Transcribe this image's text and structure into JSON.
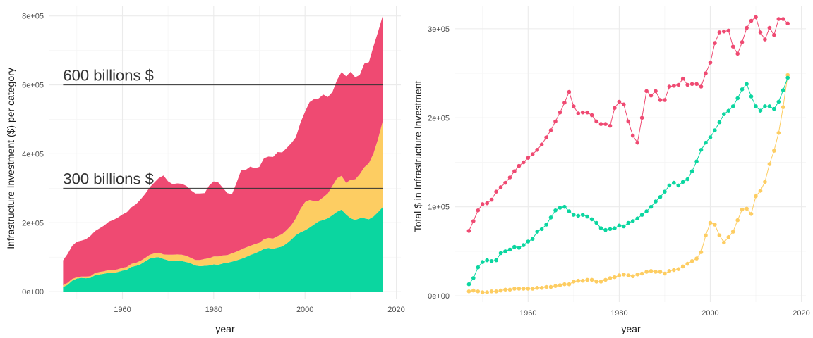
{
  "colors": {
    "red": "#ef4a72",
    "yellow": "#fdcd62",
    "green": "#0bd6a0",
    "grid_major": "#ebebeb",
    "grid_minor": "#f5f5f5",
    "hline": "#333333"
  },
  "chart_data": [
    {
      "type": "area",
      "stacked": true,
      "xlabel": "year",
      "ylabel": "Infrastructure Investment ($) per category",
      "xlim": [
        1944,
        2021
      ],
      "ylim": [
        -20000,
        830000
      ],
      "xticks": [
        1960,
        1980,
        2000,
        2020
      ],
      "xtick_labels": [
        "1960",
        "1980",
        "2000",
        "2020"
      ],
      "yticks": [
        0,
        200000,
        400000,
        600000,
        800000
      ],
      "ytick_labels": [
        "0e+00",
        "2e+05",
        "4e+05",
        "6e+05",
        "8e+05"
      ],
      "annotations": [
        {
          "y": 600000,
          "x_start": 1947,
          "x_end": 2017,
          "text": "600 billions $"
        },
        {
          "y": 300000,
          "x_start": 1947,
          "x_end": 2017,
          "text": "300 billions $"
        }
      ],
      "years": [
        1947,
        1948,
        1949,
        1950,
        1951,
        1952,
        1953,
        1954,
        1955,
        1956,
        1957,
        1958,
        1959,
        1960,
        1961,
        1962,
        1963,
        1964,
        1965,
        1966,
        1967,
        1968,
        1969,
        1970,
        1971,
        1972,
        1973,
        1974,
        1975,
        1976,
        1977,
        1978,
        1979,
        1980,
        1981,
        1982,
        1983,
        1984,
        1985,
        1986,
        1987,
        1988,
        1989,
        1990,
        1991,
        1992,
        1993,
        1994,
        1995,
        1996,
        1997,
        1998,
        1999,
        2000,
        2001,
        2002,
        2003,
        2004,
        2005,
        2006,
        2007,
        2008,
        2009,
        2010,
        2011,
        2012,
        2013,
        2014,
        2015,
        2016,
        2017
      ],
      "series": [
        {
          "name": "green",
          "color_key": "green",
          "values": [
            13000,
            20000,
            32000,
            38000,
            40000,
            39000,
            40000,
            48000,
            50000,
            52000,
            55000,
            54000,
            57000,
            61000,
            64000,
            72000,
            75000,
            80000,
            88000,
            96000,
            99000,
            100000,
            95000,
            91000,
            90000,
            91000,
            89000,
            86000,
            82000,
            76000,
            74000,
            75000,
            76000,
            79000,
            78000,
            82000,
            84000,
            87000,
            91000,
            95000,
            100000,
            106000,
            111000,
            117000,
            124000,
            127000,
            124000,
            128000,
            131000,
            140000,
            151000,
            164000,
            172000,
            178000,
            186000,
            195000,
            204000,
            208000,
            213000,
            222000,
            232000,
            238000,
            224000,
            213000,
            208000,
            213000,
            213000,
            210000,
            218000,
            231000,
            245000
          ]
        },
        {
          "name": "yellow",
          "color_key": "yellow",
          "values": [
            5000,
            6000,
            5000,
            4000,
            4000,
            5000,
            5000,
            6000,
            7000,
            7000,
            8000,
            8000,
            8000,
            8000,
            8000,
            9000,
            9000,
            10000,
            10000,
            11000,
            12000,
            13000,
            13000,
            16000,
            17000,
            17000,
            18000,
            18000,
            16000,
            16000,
            18000,
            20000,
            21000,
            23000,
            24000,
            23000,
            22000,
            24000,
            25000,
            27000,
            28000,
            27000,
            27000,
            25000,
            28000,
            29000,
            30000,
            33000,
            36000,
            39000,
            42000,
            49000,
            68000,
            82000,
            80000,
            68000,
            60000,
            66000,
            72000,
            85000,
            97000,
            98000,
            92000,
            112000,
            118000,
            128000,
            148000,
            163000,
            183000,
            212000,
            248000
          ]
        },
        {
          "name": "red",
          "color_key": "red",
          "values": [
            73000,
            84000,
            96000,
            103000,
            104000,
            108000,
            117000,
            122000,
            127000,
            133000,
            140000,
            146000,
            150000,
            155000,
            159000,
            164000,
            170000,
            178000,
            186000,
            196000,
            206000,
            217000,
            229000,
            213000,
            205000,
            206000,
            206000,
            203000,
            196000,
            193000,
            193000,
            191000,
            211000,
            218000,
            215000,
            196000,
            180000,
            172000,
            200000,
            230000,
            225000,
            230000,
            220000,
            220000,
            235000,
            236000,
            237000,
            244000,
            237000,
            238000,
            238000,
            235000,
            250000,
            262000,
            284000,
            296000,
            297000,
            298000,
            280000,
            272000,
            285000,
            301000,
            309000,
            313000,
            296000,
            288000,
            301000,
            293000,
            311000,
            311000,
            306000
          ]
        }
      ]
    },
    {
      "type": "line",
      "markers": true,
      "xlabel": "year",
      "ylabel": "Total $ in Infrastructure Investment",
      "xlim": [
        1944,
        2021
      ],
      "ylim": [
        -7000,
        326000
      ],
      "xticks": [
        1960,
        1980,
        2000,
        2020
      ],
      "xtick_labels": [
        "1960",
        "1980",
        "2000",
        "2020"
      ],
      "yticks": [
        0,
        100000,
        200000,
        300000
      ],
      "ytick_labels": [
        "0e+00",
        "1e+05",
        "2e+05",
        "3e+05"
      ],
      "series_ref": "same as chart 1 series (yellow, green, red)"
    }
  ]
}
